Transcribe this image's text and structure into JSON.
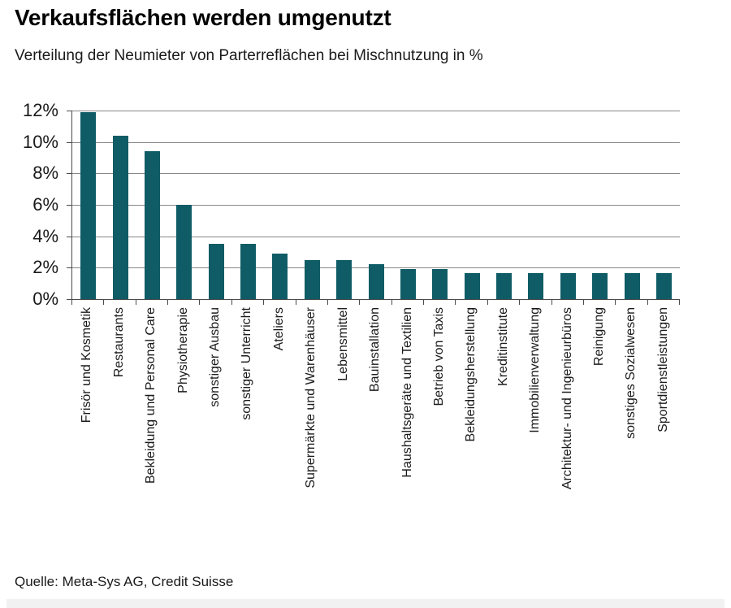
{
  "title": "Verkaufsflächen werden umgenutzt",
  "subtitle": "Verteilung der Neumieter von Parterreflächen bei Mischnutzung in %",
  "source": "Quelle: Meta-Sys AG, Credit Suisse",
  "colors": {
    "bar": "#0f5c66",
    "gridline": "#878787",
    "axis": "#4a4a4a",
    "text": "#1a1a1a"
  },
  "chart_data": {
    "type": "bar",
    "title": "Verkaufsflächen werden umgenutzt",
    "subtitle": "Verteilung der Neumieter von Parterreflächen bei Mischnutzung in %",
    "categories": [
      "Frisör und Kosmetik",
      "Restaurants",
      "Bekleidung und Personal Care",
      "Physiotherapie",
      "sonstiger Ausbau",
      "sonstiger Unterricht",
      "Ateliers",
      "Supermärkte und Warenhäuser",
      "Lebensmittel",
      "Bauinstallation",
      "Haushaltsgeräte und Textilien",
      "Betrieb von Taxis",
      "Bekleidungsherstellung",
      "Kreditinstitute",
      "Immobilienverwaltung",
      "Architektur- und Ingenieurbüros",
      "Reinigung",
      "sonstiges Sozialwesen",
      "Sportdienstleistungen"
    ],
    "values": [
      11.9,
      10.4,
      9.4,
      6.0,
      3.5,
      3.5,
      2.9,
      2.5,
      2.5,
      2.2,
      1.9,
      1.9,
      1.65,
      1.65,
      1.65,
      1.65,
      1.65,
      1.65,
      1.65
    ],
    "xlabel": "",
    "ylabel": "",
    "ylim": [
      0,
      12
    ],
    "yticks": [
      {
        "value": 0,
        "label": "0%"
      },
      {
        "value": 2,
        "label": "2%"
      },
      {
        "value": 4,
        "label": "4%"
      },
      {
        "value": 6,
        "label": "6%"
      },
      {
        "value": 8,
        "label": "8%"
      },
      {
        "value": 10,
        "label": "10%"
      },
      {
        "value": 12,
        "label": "12%"
      }
    ],
    "grid": true,
    "legend": false,
    "bar_orientation": "vertical",
    "x_label_rotation_deg": 90
  }
}
